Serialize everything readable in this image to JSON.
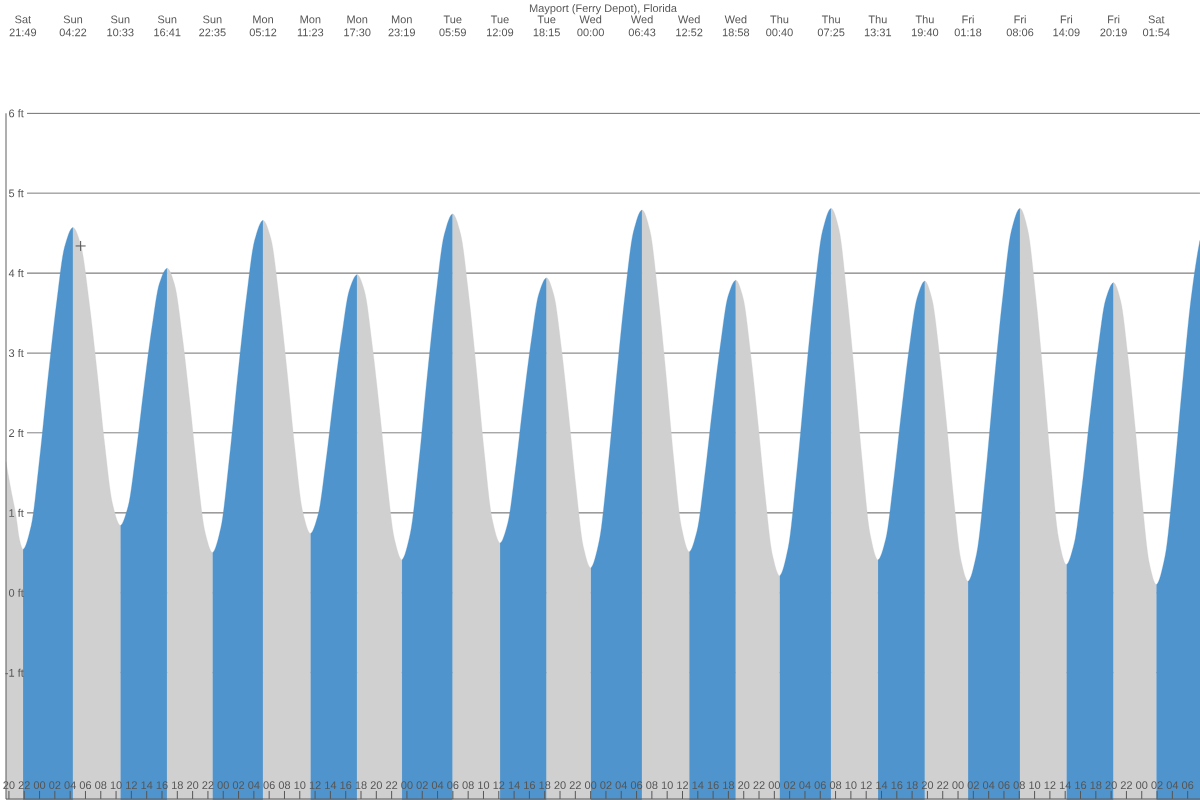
{
  "chart_data": {
    "type": "area",
    "title": "Mayport (Ferry Depot), Florida",
    "x": [
      19.62,
      20.25,
      20.9,
      21.4,
      21.82,
      22.91,
      24.0,
      25.1,
      26.19,
      27.28,
      28.37,
      29.4,
      30.43,
      31.46,
      32.49,
      33.52,
      34.55,
      35.57,
      36.59,
      37.62,
      38.64,
      39.66,
      40.68,
      41.66,
      42.65,
      43.63,
      44.61,
      45.6,
      46.58,
      47.68,
      48.79,
      49.89,
      50.99,
      52.1,
      53.2,
      54.23,
      55.26,
      56.29,
      57.32,
      58.35,
      59.38,
      60.4,
      61.42,
      62.44,
      63.46,
      64.48,
      65.5,
      66.47,
      67.44,
      68.41,
      69.38,
      70.35,
      71.32,
      72.43,
      73.54,
      74.65,
      75.76,
      76.87,
      77.98,
      79.01,
      80.04,
      81.07,
      82.09,
      83.12,
      84.15,
      85.17,
      86.18,
      87.2,
      88.22,
      89.23,
      90.25,
      91.21,
      92.17,
      93.13,
      94.08,
      95.04,
      96.0,
      97.12,
      98.24,
      99.36,
      100.48,
      101.6,
      102.72,
      103.75,
      104.77,
      105.8,
      106.82,
      107.85,
      108.87,
      109.89,
      110.9,
      111.92,
      112.94,
      113.95,
      114.97,
      115.92,
      116.87,
      117.82,
      118.77,
      119.72,
      120.67,
      121.8,
      122.92,
      124.05,
      125.17,
      126.3,
      127.42,
      128.44,
      129.45,
      130.47,
      131.49,
      132.5,
      133.52,
      134.55,
      135.57,
      136.6,
      137.62,
      138.65,
      139.67,
      140.61,
      141.55,
      142.49,
      143.42,
      144.36,
      145.3,
      146.43,
      147.57,
      148.7,
      149.83,
      150.97,
      152.1,
      153.11,
      154.12,
      155.13,
      156.13,
      157.14,
      158.15,
      159.18,
      160.21,
      161.24,
      162.26,
      163.29,
      164.32,
      165.25,
      166.18,
      167.11,
      168.04,
      168.97,
      169.9,
      171.03,
      172.17,
      173.3,
      174.43,
      175.61
    ],
    "series": [
      {
        "color": "#4f94cd",
        "values": [
          null,
          null,
          null,
          null,
          0.54,
          0.84,
          1.67,
          2.68,
          3.6,
          4.33,
          4.57,
          null,
          null,
          null,
          null,
          null,
          0.84,
          1.08,
          1.74,
          2.55,
          3.29,
          3.87,
          4.06,
          null,
          null,
          null,
          null,
          null,
          0.5,
          0.81,
          1.67,
          2.71,
          3.66,
          4.41,
          4.66,
          null,
          null,
          null,
          null,
          null,
          0.74,
          0.98,
          1.65,
          2.46,
          3.2,
          3.79,
          3.98,
          null,
          null,
          null,
          null,
          null,
          0.41,
          0.74,
          1.62,
          2.71,
          3.7,
          4.48,
          4.74,
          null,
          null,
          null,
          null,
          null,
          0.62,
          0.87,
          1.55,
          2.38,
          3.14,
          3.74,
          3.94,
          null,
          null,
          null,
          null,
          null,
          0.31,
          0.65,
          1.56,
          2.68,
          3.72,
          4.52,
          4.79,
          null,
          null,
          null,
          null,
          null,
          0.51,
          0.77,
          1.46,
          2.31,
          3.09,
          3.71,
          3.91,
          null,
          null,
          null,
          null,
          null,
          0.21,
          0.56,
          1.5,
          2.65,
          3.71,
          4.53,
          4.81,
          null,
          null,
          null,
          null,
          null,
          0.41,
          0.67,
          1.39,
          2.26,
          3.06,
          3.69,
          3.9,
          null,
          null,
          null,
          null,
          null,
          0.14,
          0.49,
          1.45,
          2.62,
          3.69,
          4.53,
          4.81,
          null,
          null,
          null,
          null,
          null,
          0.35,
          0.62,
          1.34,
          2.22,
          3.03,
          3.67,
          3.88,
          null,
          null,
          null,
          null,
          null,
          0.1,
          0.45,
          1.42,
          2.59,
          3.67,
          4.41
        ]
      },
      {
        "color": "#d0d0d0",
        "values": [
          1.64,
          1.3,
          0.98,
          0.66,
          0.54,
          null,
          null,
          null,
          null,
          null,
          4.57,
          4.35,
          3.68,
          2.82,
          1.88,
          1.12,
          0.84,
          null,
          null,
          null,
          null,
          null,
          4.06,
          3.85,
          3.21,
          2.39,
          1.5,
          0.77,
          0.5,
          null,
          null,
          null,
          null,
          null,
          4.66,
          4.43,
          3.72,
          2.82,
          1.84,
          1.03,
          0.74,
          null,
          null,
          null,
          null,
          null,
          3.98,
          3.77,
          3.12,
          2.3,
          1.41,
          0.68,
          0.41,
          null,
          null,
          null,
          null,
          null,
          4.74,
          4.49,
          3.75,
          2.8,
          1.77,
          0.93,
          0.62,
          null,
          null,
          null,
          null,
          null,
          3.94,
          3.72,
          3.07,
          2.23,
          1.33,
          0.58,
          0.31,
          null,
          null,
          null,
          null,
          null,
          4.79,
          4.53,
          3.76,
          2.78,
          1.71,
          0.83,
          0.51,
          null,
          null,
          null,
          null,
          null,
          3.91,
          3.69,
          3.02,
          2.17,
          1.25,
          0.49,
          0.21,
          null,
          null,
          null,
          null,
          null,
          4.81,
          4.55,
          3.75,
          2.74,
          1.64,
          0.74,
          0.41,
          null,
          null,
          null,
          null,
          null,
          3.9,
          3.67,
          3.0,
          2.13,
          1.19,
          0.42,
          0.14,
          null,
          null,
          null,
          null,
          null,
          4.81,
          4.54,
          3.74,
          2.71,
          1.6,
          0.68,
          0.35,
          null,
          null,
          null,
          null,
          null,
          3.88,
          3.65,
          2.97,
          2.1,
          1.16,
          0.38,
          0.1,
          null,
          null,
          null,
          null,
          null
        ]
      },
      {
        "type": "scatter",
        "color": "#555555",
        "marker": "cross",
        "x": [
          29.37
        ],
        "values": [
          4.34
        ]
      }
    ],
    "xlim": [
      19.62,
      175.61
    ],
    "ylim": [
      -2.58,
      6
    ],
    "xticks": [
      {
        "value": 20,
        "label": "20"
      },
      {
        "value": 22,
        "label": "22"
      },
      {
        "value": 24,
        "label": "00"
      },
      {
        "value": 26,
        "label": "02"
      },
      {
        "value": 28,
        "label": "04"
      },
      {
        "value": 30,
        "label": "06"
      },
      {
        "value": 32,
        "label": "08"
      },
      {
        "value": 34,
        "label": "10"
      },
      {
        "value": 36,
        "label": "12"
      },
      {
        "value": 38,
        "label": "14"
      },
      {
        "value": 40,
        "label": "16"
      },
      {
        "value": 42,
        "label": "18"
      },
      {
        "value": 44,
        "label": "20"
      },
      {
        "value": 46,
        "label": "22"
      },
      {
        "value": 48,
        "label": "00"
      },
      {
        "value": 50,
        "label": "02"
      },
      {
        "value": 52,
        "label": "04"
      },
      {
        "value": 54,
        "label": "06"
      },
      {
        "value": 56,
        "label": "08"
      },
      {
        "value": 58,
        "label": "10"
      },
      {
        "value": 60,
        "label": "12"
      },
      {
        "value": 62,
        "label": "14"
      },
      {
        "value": 64,
        "label": "16"
      },
      {
        "value": 66,
        "label": "18"
      },
      {
        "value": 68,
        "label": "20"
      },
      {
        "value": 70,
        "label": "22"
      },
      {
        "value": 72,
        "label": "00"
      },
      {
        "value": 74,
        "label": "02"
      },
      {
        "value": 76,
        "label": "04"
      },
      {
        "value": 78,
        "label": "06"
      },
      {
        "value": 80,
        "label": "08"
      },
      {
        "value": 82,
        "label": "10"
      },
      {
        "value": 84,
        "label": "12"
      },
      {
        "value": 86,
        "label": "14"
      },
      {
        "value": 88,
        "label": "16"
      },
      {
        "value": 90,
        "label": "18"
      },
      {
        "value": 92,
        "label": "20"
      },
      {
        "value": 94,
        "label": "22"
      },
      {
        "value": 96,
        "label": "00"
      },
      {
        "value": 98,
        "label": "02"
      },
      {
        "value": 100,
        "label": "04"
      },
      {
        "value": 102,
        "label": "06"
      },
      {
        "value": 104,
        "label": "08"
      },
      {
        "value": 106,
        "label": "10"
      },
      {
        "value": 108,
        "label": "12"
      },
      {
        "value": 110,
        "label": "14"
      },
      {
        "value": 112,
        "label": "16"
      },
      {
        "value": 114,
        "label": "18"
      },
      {
        "value": 116,
        "label": "20"
      },
      {
        "value": 118,
        "label": "22"
      },
      {
        "value": 120,
        "label": "00"
      },
      {
        "value": 122,
        "label": "02"
      },
      {
        "value": 124,
        "label": "04"
      },
      {
        "value": 126,
        "label": "06"
      },
      {
        "value": 128,
        "label": "08"
      },
      {
        "value": 130,
        "label": "10"
      },
      {
        "value": 132,
        "label": "12"
      },
      {
        "value": 134,
        "label": "14"
      },
      {
        "value": 136,
        "label": "16"
      },
      {
        "value": 138,
        "label": "18"
      },
      {
        "value": 140,
        "label": "20"
      },
      {
        "value": 142,
        "label": "22"
      },
      {
        "value": 144,
        "label": "00"
      },
      {
        "value": 146,
        "label": "02"
      },
      {
        "value": 148,
        "label": "04"
      },
      {
        "value": 150,
        "label": "06"
      },
      {
        "value": 152,
        "label": "08"
      },
      {
        "value": 154,
        "label": "10"
      },
      {
        "value": 156,
        "label": "12"
      },
      {
        "value": 158,
        "label": "14"
      },
      {
        "value": 160,
        "label": "16"
      },
      {
        "value": 162,
        "label": "18"
      },
      {
        "value": 164,
        "label": "20"
      },
      {
        "value": 166,
        "label": "22"
      },
      {
        "value": 168,
        "label": "00"
      },
      {
        "value": 170,
        "label": "02"
      },
      {
        "value": 172,
        "label": "04"
      },
      {
        "value": 174,
        "label": "06"
      }
    ],
    "yticks": [
      {
        "value": -1,
        "label": "-1 ft"
      },
      {
        "value": 0,
        "label": "0 ft"
      },
      {
        "value": 1,
        "label": "1 ft"
      },
      {
        "value": 2,
        "label": "2 ft"
      },
      {
        "value": 3,
        "label": "3 ft"
      },
      {
        "value": 4,
        "label": "4 ft"
      },
      {
        "value": 5,
        "label": "5 ft"
      },
      {
        "value": 6,
        "label": "6 ft"
      }
    ],
    "annotations": [
      "Sat 21:49",
      "Sun 04:22",
      "Sun 10:33",
      "Sun 16:41",
      "Sun 22:35",
      "Mon 05:12",
      "Mon 11:23",
      "Mon 17:30",
      "Mon 23:19",
      "Tue 05:59",
      "Tue 12:09",
      "Tue 18:15",
      "Wed 00:00",
      "Wed 06:43",
      "Wed 12:52",
      "Wed 18:58",
      "Thu 00:40",
      "Thu 07:25",
      "Thu 13:31",
      "Thu 19:40",
      "Fri 01:18",
      "Fri 08:06",
      "Fri 14:09",
      "Fri 20:19",
      "Sat 01:54"
    ],
    "grid": "y"
  }
}
